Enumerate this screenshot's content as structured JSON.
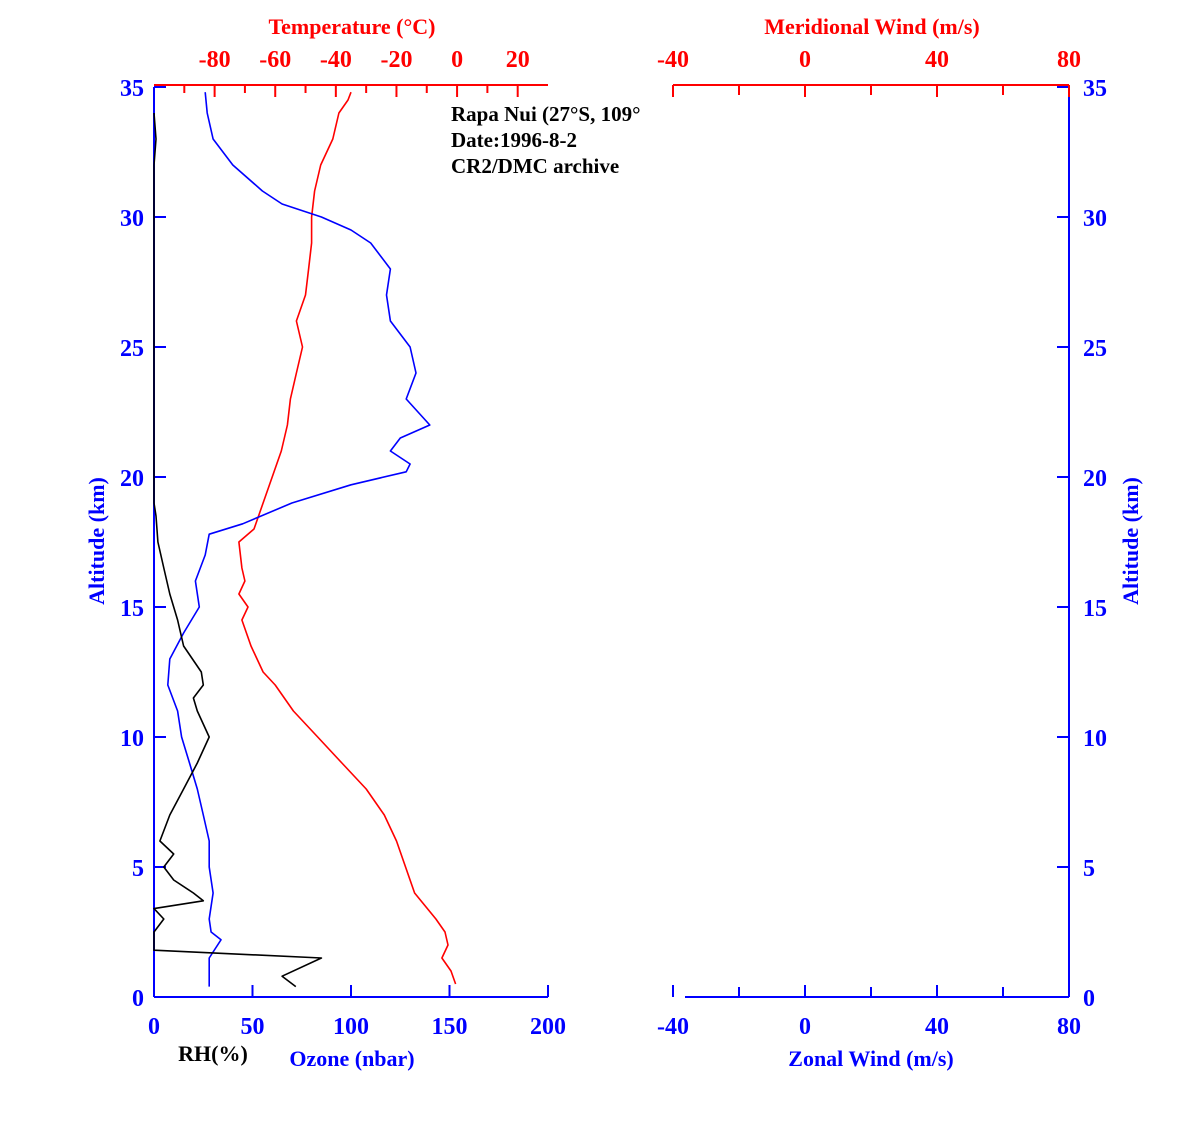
{
  "chart_data": [
    {
      "type": "line",
      "panel": "left",
      "annotations": [
        "Rapa Nui (27°S, 109°",
        "Date:1996-8-2",
        "CR2/DMC archive"
      ],
      "ylabel": "Altitude (km)",
      "ylabel_right": "Altitude (km)",
      "ylim": [
        0,
        35
      ],
      "y_ticks": [
        "0",
        "5",
        "10",
        "15",
        "20",
        "25",
        "30",
        "35"
      ],
      "top_axis": {
        "label": "Temperature (°C)",
        "range": [
          -100,
          30
        ],
        "ticks": [
          "-80",
          "-60",
          "-40",
          "-20",
          "0",
          "20"
        ],
        "tick_values": [
          -80,
          -60,
          -40,
          -20,
          0,
          20
        ]
      },
      "bottom_axis": {
        "label": "Ozone (nbar)",
        "label2": "RH(%)",
        "range": [
          0,
          200
        ],
        "ticks": [
          "0",
          "50",
          "100",
          "150",
          "200"
        ],
        "tick_values": [
          0,
          50,
          100,
          150,
          200
        ]
      },
      "series": [
        {
          "axis": "top",
          "color": "#ff0000",
          "points": [
            [
              -0.5,
              0.5
            ],
            [
              -2,
              1
            ],
            [
              -5,
              1.5
            ],
            [
              -3,
              2
            ],
            [
              -4,
              2.5
            ],
            [
              -7,
              3
            ],
            [
              -14,
              4
            ],
            [
              -20,
              6
            ],
            [
              -24,
              7
            ],
            [
              -30,
              8
            ],
            [
              -38,
              9
            ],
            [
              -46,
              10
            ],
            [
              -54,
              11
            ],
            [
              -60,
              12
            ],
            [
              -64,
              12.5
            ],
            [
              -68,
              13.5
            ],
            [
              -71,
              14.5
            ],
            [
              -69,
              15
            ],
            [
              -72,
              15.5
            ],
            [
              -70,
              16
            ],
            [
              -71,
              16.5
            ],
            [
              -72,
              17.5
            ],
            [
              -67,
              18
            ],
            [
              -64,
              19
            ],
            [
              -61,
              20
            ],
            [
              -58,
              21
            ],
            [
              -56,
              22
            ],
            [
              -55,
              23
            ],
            [
              -53,
              24
            ],
            [
              -51,
              25
            ],
            [
              -53,
              26
            ],
            [
              -50,
              27
            ],
            [
              -49,
              28
            ],
            [
              -48,
              29
            ],
            [
              -48,
              30
            ],
            [
              -47,
              31
            ],
            [
              -45,
              32
            ],
            [
              -41,
              33
            ],
            [
              -39,
              34
            ],
            [
              -36,
              34.5
            ],
            [
              -35,
              34.8
            ]
          ]
        },
        {
          "axis": "bottom",
          "color": "#0000ff",
          "points": [
            [
              28,
              0.4
            ],
            [
              28,
              1
            ],
            [
              28,
              1.5
            ],
            [
              34,
              2.2
            ],
            [
              29,
              2.5
            ],
            [
              28,
              3
            ],
            [
              30,
              4
            ],
            [
              28,
              5
            ],
            [
              28,
              6
            ],
            [
              25,
              7
            ],
            [
              22,
              8
            ],
            [
              18,
              9
            ],
            [
              14,
              10
            ],
            [
              12,
              11
            ],
            [
              7,
              12
            ],
            [
              8,
              13
            ],
            [
              15,
              14
            ],
            [
              23,
              15
            ],
            [
              21,
              16
            ],
            [
              26,
              17
            ],
            [
              28,
              17.8
            ],
            [
              45,
              18.2
            ],
            [
              70,
              19
            ],
            [
              100,
              19.7
            ],
            [
              128,
              20.2
            ],
            [
              130,
              20.5
            ],
            [
              120,
              21
            ],
            [
              125,
              21.5
            ],
            [
              140,
              22
            ],
            [
              128,
              23
            ],
            [
              133,
              24
            ],
            [
              130,
              25
            ],
            [
              120,
              26
            ],
            [
              118,
              27
            ],
            [
              120,
              28
            ],
            [
              110,
              29
            ],
            [
              100,
              29.5
            ],
            [
              85,
              30
            ],
            [
              65,
              30.5
            ],
            [
              55,
              31
            ],
            [
              40,
              32
            ],
            [
              30,
              33
            ],
            [
              27,
              34
            ],
            [
              26,
              34.8
            ]
          ]
        },
        {
          "axis": "bottom",
          "color": "#000000",
          "points": [
            [
              72,
              0.4
            ],
            [
              65,
              0.8
            ],
            [
              85,
              1.5
            ],
            [
              0,
              1.8
            ],
            [
              0,
              2.5
            ],
            [
              5,
              3
            ],
            [
              0,
              3.4
            ],
            [
              25,
              3.7
            ],
            [
              20,
              4
            ],
            [
              10,
              4.5
            ],
            [
              5,
              5
            ],
            [
              10,
              5.5
            ],
            [
              3,
              6
            ],
            [
              8,
              7
            ],
            [
              15,
              8
            ],
            [
              22,
              9
            ],
            [
              28,
              10
            ],
            [
              22,
              11
            ],
            [
              20,
              11.5
            ],
            [
              25,
              12
            ],
            [
              24,
              12.5
            ],
            [
              15,
              13.5
            ],
            [
              12,
              14.5
            ],
            [
              8,
              15.5
            ],
            [
              5,
              16.5
            ],
            [
              2,
              17.5
            ],
            [
              1,
              18.5
            ],
            [
              0,
              19
            ],
            [
              0,
              20
            ],
            [
              0,
              25
            ],
            [
              0,
              30
            ],
            [
              0,
              32
            ],
            [
              1,
              33
            ],
            [
              0,
              34
            ]
          ]
        }
      ]
    },
    {
      "type": "line",
      "panel": "right",
      "ylabel_right": "Altitude (km)",
      "ylim": [
        0,
        35
      ],
      "y_ticks": [
        "0",
        "5",
        "10",
        "15",
        "20",
        "25",
        "30",
        "35"
      ],
      "top_axis": {
        "label": "Meridional Wind (m/s)",
        "range": [
          -40,
          80
        ],
        "ticks": [
          "-40",
          "0",
          "40",
          "80"
        ],
        "tick_values": [
          -40,
          0,
          40,
          80
        ]
      },
      "bottom_axis": {
        "label": "Zonal Wind (m/s)",
        "range": [
          -40,
          80
        ],
        "ticks": [
          "-40",
          "0",
          "40",
          "80"
        ],
        "tick_values": [
          -40,
          0,
          40,
          80
        ]
      },
      "series": []
    }
  ]
}
